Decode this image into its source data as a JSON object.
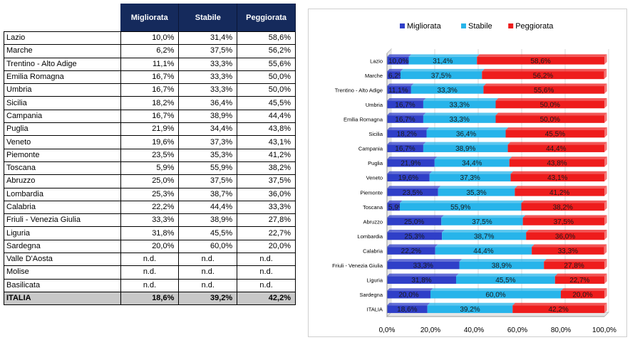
{
  "table": {
    "headers": [
      "Migliorata",
      "Stabile",
      "Peggiorata"
    ],
    "rows": [
      {
        "region": "Lazio",
        "values": [
          "10,0%",
          "31,4%",
          "58,6%"
        ]
      },
      {
        "region": "Marche",
        "values": [
          "6,2%",
          "37,5%",
          "56,2%"
        ]
      },
      {
        "region": "Trentino - Alto Adige",
        "values": [
          "11,1%",
          "33,3%",
          "55,6%"
        ]
      },
      {
        "region": "Emilia Romagna",
        "values": [
          "16,7%",
          "33,3%",
          "50,0%"
        ]
      },
      {
        "region": "Umbria",
        "values": [
          "16,7%",
          "33,3%",
          "50,0%"
        ]
      },
      {
        "region": "Sicilia",
        "values": [
          "18,2%",
          "36,4%",
          "45,5%"
        ]
      },
      {
        "region": "Campania",
        "values": [
          "16,7%",
          "38,9%",
          "44,4%"
        ]
      },
      {
        "region": "Puglia",
        "values": [
          "21,9%",
          "34,4%",
          "43,8%"
        ]
      },
      {
        "region": "Veneto",
        "values": [
          "19,6%",
          "37,3%",
          "43,1%"
        ]
      },
      {
        "region": "Piemonte",
        "values": [
          "23,5%",
          "35,3%",
          "41,2%"
        ]
      },
      {
        "region": "Toscana",
        "values": [
          "5,9%",
          "55,9%",
          "38,2%"
        ]
      },
      {
        "region": "Abruzzo",
        "values": [
          "25,0%",
          "37,5%",
          "37,5%"
        ]
      },
      {
        "region": "Lombardia",
        "values": [
          "25,3%",
          "38,7%",
          "36,0%"
        ]
      },
      {
        "region": "Calabria",
        "values": [
          "22,2%",
          "44,4%",
          "33,3%"
        ]
      },
      {
        "region": "Friuli - Venezia Giulia",
        "values": [
          "33,3%",
          "38,9%",
          "27,8%"
        ]
      },
      {
        "region": "Liguria",
        "values": [
          "31,8%",
          "45,5%",
          "22,7%"
        ]
      },
      {
        "region": "Sardegna",
        "values": [
          "20,0%",
          "60,0%",
          "20,0%"
        ]
      },
      {
        "region": "Valle D'Aosta",
        "values": [
          "n.d.",
          "n.d.",
          "n.d."
        ]
      },
      {
        "region": "Molise",
        "values": [
          "n.d.",
          "n.d.",
          "n.d."
        ]
      },
      {
        "region": "Basilicata",
        "values": [
          "n.d.",
          "n.d.",
          "n.d."
        ]
      }
    ],
    "total": {
      "region": "ITALIA",
      "values": [
        "18,6%",
        "39,2%",
        "42,2%"
      ]
    }
  },
  "colors": {
    "header_bg": "#152a5c",
    "migliorata": "#2f3fc8",
    "stabile": "#27b4ea",
    "peggiorata": "#ee1c1c",
    "total_bg": "#c8c8c8"
  },
  "chart_data": {
    "type": "bar",
    "orientation": "horizontal",
    "stacked": "percent",
    "legend_position": "top",
    "categories": [
      "Lazio",
      "Marche",
      "Trentino - Alto Adige",
      "Umbria",
      "Emilia Romagna",
      "Sicilia",
      "Campania",
      "Puglia",
      "Veneto",
      "Piemonte",
      "Toscana",
      "Abruzzo",
      "Lombardia",
      "Calabria",
      "Friuli - Venezia Giulia",
      "Liguria",
      "Sardegna",
      "ITALIA"
    ],
    "series": [
      {
        "name": "Migliorata",
        "values": [
          10.0,
          6.2,
          11.1,
          16.7,
          16.7,
          18.2,
          16.7,
          21.9,
          19.6,
          23.5,
          5.9,
          25.0,
          25.3,
          22.2,
          33.3,
          31.8,
          20.0,
          18.6
        ],
        "labels": [
          "10,0%",
          "6,2%",
          "11,1%",
          "16,7%",
          "16,7%",
          "18,2%",
          "16,7%",
          "21,9%",
          "19,6%",
          "23,5%",
          "5,9%",
          "25,0%",
          "25,3%",
          "22,2%",
          "33,3%",
          "31,8%",
          "20,0%",
          "18,6%"
        ]
      },
      {
        "name": "Stabile",
        "values": [
          31.4,
          37.5,
          33.3,
          33.3,
          33.3,
          36.4,
          38.9,
          34.4,
          37.3,
          35.3,
          55.9,
          37.5,
          38.7,
          44.4,
          38.9,
          45.5,
          60.0,
          39.2
        ],
        "labels": [
          "31,4%",
          "37,5%",
          "33,3%",
          "33,3%",
          "33,3%",
          "36,4%",
          "38,9%",
          "34,4%",
          "37,3%",
          "35,3%",
          "55,9%",
          "37,5%",
          "38,7%",
          "44,4%",
          "38,9%",
          "45,5%",
          "60,0%",
          "39,2%"
        ]
      },
      {
        "name": "Peggiorata",
        "values": [
          58.6,
          56.2,
          55.6,
          50.0,
          50.0,
          45.5,
          44.4,
          43.8,
          43.1,
          41.2,
          38.2,
          37.5,
          36.0,
          33.3,
          27.8,
          22.7,
          20.0,
          42.2
        ],
        "labels": [
          "58,6%",
          "56,2%",
          "55,6%",
          "50,0%",
          "50,0%",
          "45,5%",
          "44,4%",
          "43,8%",
          "43,1%",
          "41,2%",
          "38,2%",
          "37,5%",
          "36,0%",
          "33,3%",
          "27,8%",
          "22,7%",
          "20,0%",
          "42,2%"
        ]
      }
    ],
    "xlim": [
      0,
      100
    ],
    "xticks": [
      "0,0%",
      "20,0%",
      "40,0%",
      "60,0%",
      "80,0%",
      "100,0%"
    ]
  }
}
